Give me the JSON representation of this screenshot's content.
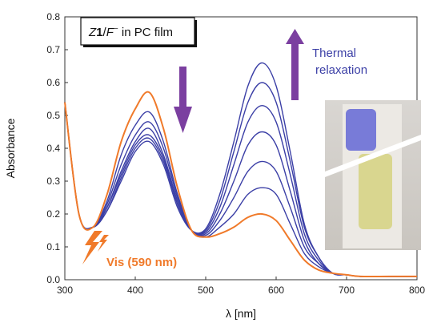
{
  "chart_data": {
    "type": "line",
    "label_box": {
      "prefix": "Z",
      "bold": "1",
      "slash": "/",
      "italic": "F",
      "sup": "−",
      "suffix": " in PC film"
    },
    "xlabel": "λ [nm]",
    "ylabel": "Absorbance",
    "xlim": [
      300,
      800
    ],
    "ylim": [
      0,
      0.8
    ],
    "xticks": [
      300,
      400,
      500,
      600,
      700,
      800
    ],
    "yticks": [
      0.0,
      0.1,
      0.2,
      0.3,
      0.4,
      0.5,
      0.6,
      0.7,
      0.8
    ],
    "annotations": {
      "thermal_line1": "Thermal",
      "thermal_line2": "relaxation",
      "vis": "Vis (590 nm)"
    },
    "colors": {
      "series_blue": "#3b3fa6",
      "series_orange": "#f07a2a",
      "arrow_purple": "#7b3fa0"
    },
    "x": [
      300,
      320,
      340,
      360,
      380,
      400,
      420,
      440,
      460,
      480,
      500,
      520,
      540,
      560,
      580,
      600,
      620,
      640,
      660,
      680,
      700,
      720,
      760,
      800
    ],
    "series": [
      {
        "color": "orange",
        "values": [
          0.54,
          0.2,
          0.16,
          0.26,
          0.42,
          0.52,
          0.57,
          0.46,
          0.28,
          0.15,
          0.13,
          0.14,
          0.16,
          0.19,
          0.2,
          0.18,
          0.12,
          0.06,
          0.03,
          0.02,
          0.015,
          0.01,
          0.01,
          0.01
        ]
      },
      {
        "color": "blue",
        "values": [
          0.54,
          0.2,
          0.16,
          0.24,
          0.38,
          0.47,
          0.51,
          0.42,
          0.26,
          0.15,
          0.13,
          0.16,
          0.2,
          0.26,
          0.28,
          0.26,
          0.17,
          0.08,
          0.04,
          0.02,
          0.015,
          0.01,
          0.01,
          0.01
        ]
      },
      {
        "color": "blue",
        "values": [
          0.54,
          0.2,
          0.16,
          0.23,
          0.35,
          0.44,
          0.48,
          0.4,
          0.25,
          0.15,
          0.135,
          0.18,
          0.25,
          0.33,
          0.36,
          0.33,
          0.22,
          0.1,
          0.05,
          0.02,
          0.015,
          0.01,
          0.01,
          0.01
        ]
      },
      {
        "color": "blue",
        "values": [
          0.54,
          0.2,
          0.16,
          0.22,
          0.33,
          0.42,
          0.46,
          0.38,
          0.24,
          0.15,
          0.14,
          0.2,
          0.3,
          0.41,
          0.45,
          0.41,
          0.27,
          0.12,
          0.05,
          0.02,
          0.015,
          0.01,
          0.01,
          0.01
        ]
      },
      {
        "color": "blue",
        "values": [
          0.54,
          0.2,
          0.16,
          0.22,
          0.32,
          0.41,
          0.44,
          0.37,
          0.23,
          0.15,
          0.145,
          0.22,
          0.35,
          0.48,
          0.53,
          0.48,
          0.32,
          0.14,
          0.06,
          0.02,
          0.015,
          0.01,
          0.01,
          0.01
        ]
      },
      {
        "color": "blue",
        "values": [
          0.54,
          0.2,
          0.16,
          0.21,
          0.31,
          0.4,
          0.43,
          0.36,
          0.23,
          0.15,
          0.15,
          0.24,
          0.39,
          0.54,
          0.6,
          0.54,
          0.36,
          0.16,
          0.07,
          0.02,
          0.015,
          0.01,
          0.01,
          0.01
        ]
      },
      {
        "color": "blue",
        "values": [
          0.54,
          0.2,
          0.16,
          0.21,
          0.3,
          0.39,
          0.42,
          0.35,
          0.22,
          0.15,
          0.155,
          0.26,
          0.42,
          0.59,
          0.66,
          0.59,
          0.39,
          0.17,
          0.07,
          0.02,
          0.015,
          0.01,
          0.01,
          0.01
        ]
      }
    ]
  }
}
